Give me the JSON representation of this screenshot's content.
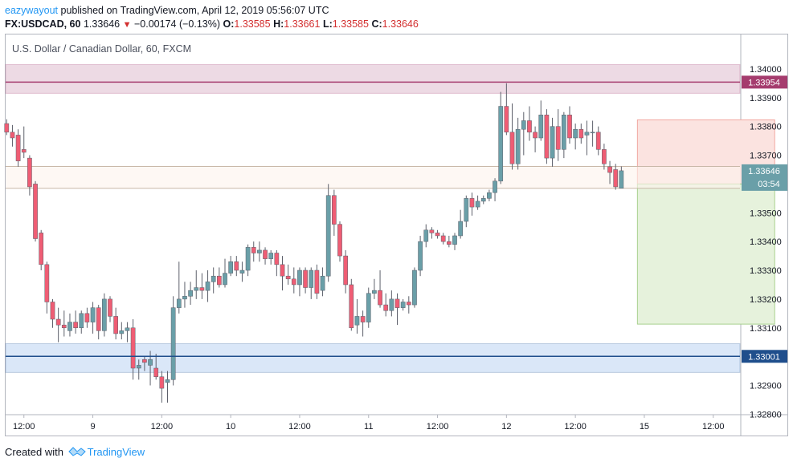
{
  "header": {
    "author": "eazywayout",
    "published_text": " published on TradingView.com, April 12, 2019 05:56:07 UTC"
  },
  "ohlc": {
    "symbol": "FX:USDCAD, 60",
    "last": "1.33646",
    "change": "−0.00174 (−0.13%)",
    "o_label": "O:",
    "o": "1.33585",
    "h_label": "H:",
    "h": "1.33661",
    "l_label": "L:",
    "l": "1.33585",
    "c_label": "C:",
    "c": "1.33646"
  },
  "legend_title": "U.S. Dollar / Canadian Dollar, 60, FXCM",
  "footer": {
    "created_with": "Created with",
    "brand": "TradingView"
  },
  "colors": {
    "up": "#6a9fa8",
    "down": "#ef5d74",
    "resistance": "#a53c6e",
    "support": "#1f4e8c",
    "zone_res_fill": "#ead3df",
    "zone_sup_fill": "#d3e3f7",
    "pos_stop_fill": "#fbe3e0",
    "pos_target_fill": "#e6f2dc"
  },
  "chart_data": {
    "type": "candlestick",
    "title": "U.S. Dollar / Canadian Dollar, 60, FXCM",
    "ylim": [
      1.3272,
      1.3409
    ],
    "y_ticks": [
      "1.34000",
      "1.33900",
      "1.33800",
      "1.33700",
      "1.33600",
      "1.33500",
      "1.33400",
      "1.33300",
      "1.33200",
      "1.33100",
      "1.33000",
      "1.32900",
      "1.32800"
    ],
    "x_ticks": [
      {
        "label": "12:00",
        "i": 3
      },
      {
        "label": "9",
        "i": 15
      },
      {
        "label": "12:00",
        "i": 27
      },
      {
        "label": "10",
        "i": 39
      },
      {
        "label": "12:00",
        "i": 51
      },
      {
        "label": "11",
        "i": 63
      },
      {
        "label": "12:00",
        "i": 75
      },
      {
        "label": "12",
        "i": 87
      },
      {
        "label": "12:00",
        "i": 99
      },
      {
        "label": "15",
        "i": 111
      },
      {
        "label": "12:00",
        "i": 123
      }
    ],
    "candles": [
      [
        1.3381,
        1.33825,
        1.3377,
        1.3378
      ],
      [
        1.3378,
        1.33805,
        1.3373,
        1.3376
      ],
      [
        1.3377,
        1.3379,
        1.3366,
        1.3368
      ],
      [
        1.3372,
        1.338,
        1.3369,
        1.3371
      ],
      [
        1.3369,
        1.337,
        1.3356,
        1.3359
      ],
      [
        1.336,
        1.3361,
        1.334,
        1.3341
      ],
      [
        1.3343,
        1.3344,
        1.333,
        1.3332
      ],
      [
        1.3332,
        1.3333,
        1.3315,
        1.3319
      ],
      [
        1.3319,
        1.332,
        1.331,
        1.3313
      ],
      [
        1.3313,
        1.3317,
        1.3305,
        1.3311
      ],
      [
        1.3311,
        1.3316,
        1.3307,
        1.331
      ],
      [
        1.3309,
        1.3315,
        1.3307,
        1.3312
      ],
      [
        1.3312,
        1.3316,
        1.3308,
        1.331
      ],
      [
        1.331,
        1.3316,
        1.3308,
        1.3315
      ],
      [
        1.3315,
        1.3317,
        1.331,
        1.3312
      ],
      [
        1.3312,
        1.3319,
        1.3308,
        1.3317
      ],
      [
        1.3317,
        1.3318,
        1.3306,
        1.3309
      ],
      [
        1.3309,
        1.3322,
        1.3307,
        1.332
      ],
      [
        1.332,
        1.3321,
        1.3312,
        1.3314
      ],
      [
        1.3314,
        1.3317,
        1.3306,
        1.3308
      ],
      [
        1.3308,
        1.3312,
        1.3306,
        1.3309
      ],
      [
        1.3309,
        1.3312,
        1.3305,
        1.331
      ],
      [
        1.331,
        1.3313,
        1.3292,
        1.3296
      ],
      [
        1.3296,
        1.3299,
        1.3292,
        1.3297
      ],
      [
        1.3299,
        1.33,
        1.3295,
        1.3298
      ],
      [
        1.3297,
        1.3302,
        1.329,
        1.3299
      ],
      [
        1.3296,
        1.3301,
        1.3292,
        1.3293
      ],
      [
        1.3293,
        1.3295,
        1.3284,
        1.3289
      ],
      [
        1.3291,
        1.3295,
        1.3284,
        1.3292
      ],
      [
        1.3292,
        1.3321,
        1.329,
        1.3317
      ],
      [
        1.3317,
        1.3333,
        1.3315,
        1.332
      ],
      [
        1.332,
        1.3326,
        1.3317,
        1.3321
      ],
      [
        1.3321,
        1.3326,
        1.3318,
        1.3323
      ],
      [
        1.3323,
        1.333,
        1.332,
        1.3324
      ],
      [
        1.3324,
        1.3329,
        1.332,
        1.3323
      ],
      [
        1.3323,
        1.333,
        1.3319,
        1.3326
      ],
      [
        1.3326,
        1.3331,
        1.3322,
        1.3328
      ],
      [
        1.3328,
        1.3331,
        1.3324,
        1.3325
      ],
      [
        1.3325,
        1.3334,
        1.3324,
        1.3329
      ],
      [
        1.3329,
        1.3335,
        1.3328,
        1.3333
      ],
      [
        1.3333,
        1.3335,
        1.3328,
        1.333
      ],
      [
        1.3329,
        1.3333,
        1.3326,
        1.333
      ],
      [
        1.333,
        1.3339,
        1.3328,
        1.3338
      ],
      [
        1.3338,
        1.334,
        1.3333,
        1.3336
      ],
      [
        1.3336,
        1.334,
        1.3333,
        1.3337
      ],
      [
        1.3337,
        1.3338,
        1.3332,
        1.3334
      ],
      [
        1.3334,
        1.3337,
        1.3332,
        1.3336
      ],
      [
        1.3336,
        1.3337,
        1.3328,
        1.3332
      ],
      [
        1.3332,
        1.3335,
        1.3323,
        1.3328
      ],
      [
        1.3328,
        1.3332,
        1.3325,
        1.3327
      ],
      [
        1.3327,
        1.3331,
        1.3322,
        1.3325
      ],
      [
        1.3325,
        1.3331,
        1.3321,
        1.333
      ],
      [
        1.333,
        1.3331,
        1.3322,
        1.3324
      ],
      [
        1.3324,
        1.3331,
        1.332,
        1.333
      ],
      [
        1.333,
        1.3332,
        1.332,
        1.3322
      ],
      [
        1.3323,
        1.3331,
        1.3321,
        1.3328
      ],
      [
        1.3328,
        1.336,
        1.3326,
        1.3356
      ],
      [
        1.3356,
        1.3358,
        1.3342,
        1.3346
      ],
      [
        1.3346,
        1.3347,
        1.3333,
        1.3335
      ],
      [
        1.3335,
        1.3337,
        1.3322,
        1.3325
      ],
      [
        1.3325,
        1.3327,
        1.3309,
        1.331
      ],
      [
        1.3311,
        1.332,
        1.3308,
        1.3314
      ],
      [
        1.3314,
        1.3316,
        1.3307,
        1.3312
      ],
      [
        1.3312,
        1.3324,
        1.331,
        1.3322
      ],
      [
        1.3322,
        1.3327,
        1.332,
        1.3323
      ],
      [
        1.3323,
        1.333,
        1.3317,
        1.3318
      ],
      [
        1.3318,
        1.3322,
        1.3314,
        1.3316
      ],
      [
        1.3316,
        1.3323,
        1.3314,
        1.332
      ],
      [
        1.332,
        1.3322,
        1.3311,
        1.3317
      ],
      [
        1.3317,
        1.332,
        1.3316,
        1.3319
      ],
      [
        1.3319,
        1.3321,
        1.3315,
        1.3318
      ],
      [
        1.3318,
        1.3331,
        1.3317,
        1.333
      ],
      [
        1.333,
        1.3342,
        1.3328,
        1.334
      ],
      [
        1.334,
        1.3346,
        1.3338,
        1.3344
      ],
      [
        1.3344,
        1.3345,
        1.3341,
        1.3343
      ],
      [
        1.3343,
        1.3344,
        1.3341,
        1.3342
      ],
      [
        1.3342,
        1.3343,
        1.3339,
        1.334
      ],
      [
        1.334,
        1.3342,
        1.3338,
        1.3339
      ],
      [
        1.3339,
        1.3343,
        1.3337,
        1.3342
      ],
      [
        1.3342,
        1.3351,
        1.3341,
        1.3347
      ],
      [
        1.3347,
        1.3356,
        1.3345,
        1.3355
      ],
      [
        1.3355,
        1.3357,
        1.3349,
        1.3352
      ],
      [
        1.3352,
        1.3356,
        1.3351,
        1.3354
      ],
      [
        1.3354,
        1.3356,
        1.3353,
        1.3355
      ],
      [
        1.3355,
        1.3358,
        1.3354,
        1.3357
      ],
      [
        1.3357,
        1.3362,
        1.3354,
        1.3361
      ],
      [
        1.3361,
        1.3392,
        1.336,
        1.3387
      ],
      [
        1.3387,
        1.3395,
        1.3377,
        1.3378
      ],
      [
        1.3378,
        1.3388,
        1.3365,
        1.3367
      ],
      [
        1.3367,
        1.3383,
        1.3365,
        1.3379
      ],
      [
        1.3379,
        1.3385,
        1.337,
        1.3382
      ],
      [
        1.3382,
        1.3387,
        1.3375,
        1.3378
      ],
      [
        1.3378,
        1.338,
        1.3371,
        1.3376
      ],
      [
        1.3376,
        1.3389,
        1.3375,
        1.3384
      ],
      [
        1.3384,
        1.3386,
        1.3367,
        1.3369
      ],
      [
        1.3369,
        1.3383,
        1.3366,
        1.338
      ],
      [
        1.338,
        1.3386,
        1.3368,
        1.3372
      ],
      [
        1.3372,
        1.3385,
        1.3369,
        1.3384
      ],
      [
        1.3384,
        1.3387,
        1.3374,
        1.3376
      ],
      [
        1.3376,
        1.3381,
        1.3372,
        1.3379
      ],
      [
        1.3379,
        1.3381,
        1.3374,
        1.3376
      ],
      [
        1.3377,
        1.3382,
        1.337,
        1.3378
      ],
      [
        1.3378,
        1.3382,
        1.3373,
        1.3378
      ],
      [
        1.3378,
        1.338,
        1.337,
        1.3372
      ],
      [
        1.3372,
        1.3374,
        1.3365,
        1.3367
      ],
      [
        1.3366,
        1.3368,
        1.336,
        1.3364
      ],
      [
        1.3365,
        1.3367,
        1.3358,
        1.3359
      ],
      [
        1.33585,
        1.33661,
        1.33585,
        1.33646
      ]
    ],
    "hlines": [
      {
        "name": "resistance",
        "value": 1.33954,
        "label": "1.33954"
      },
      {
        "name": "support",
        "value": 1.33001,
        "label": "1.33001"
      }
    ],
    "zones": [
      {
        "name": "resistance-zone",
        "top": 1.34015,
        "bottom": 1.33915
      },
      {
        "name": "support-zone",
        "top": 1.33045,
        "bottom": 1.32945
      }
    ],
    "last_price": {
      "value": 1.33646,
      "label": "1.33646",
      "countdown": "03:54"
    },
    "position": {
      "type": "short",
      "entry": 1.336,
      "stop": 1.33823,
      "target": 1.33113,
      "from_i": 107,
      "to_i": 126
    },
    "price_range_band": {
      "top": 1.33661,
      "bottom": 1.33585
    }
  }
}
